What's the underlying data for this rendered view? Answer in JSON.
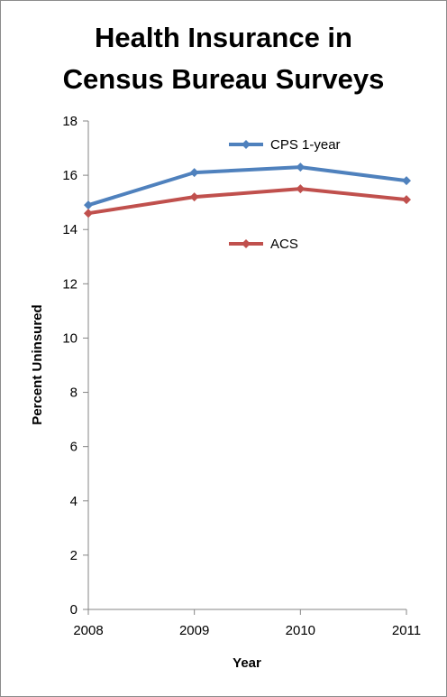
{
  "chart_data": {
    "type": "line",
    "title_lines": [
      "Health Insurance in",
      "Census Bureau Surveys"
    ],
    "xlabel": "Year",
    "ylabel": "Percent Uninsured",
    "x": [
      "2008",
      "2009",
      "2010",
      "2011"
    ],
    "y_ticks": [
      0,
      2,
      4,
      6,
      8,
      10,
      12,
      14,
      16,
      18
    ],
    "ylim": [
      0,
      18
    ],
    "grid": false,
    "legend_placement": "inside-top",
    "series": [
      {
        "name": "CPS 1-year",
        "color": "#4f81bd",
        "values": [
          14.9,
          16.1,
          16.3,
          15.8
        ]
      },
      {
        "name": "ACS",
        "color": "#c0504d",
        "values": [
          14.6,
          15.2,
          15.5,
          15.1
        ]
      }
    ]
  }
}
